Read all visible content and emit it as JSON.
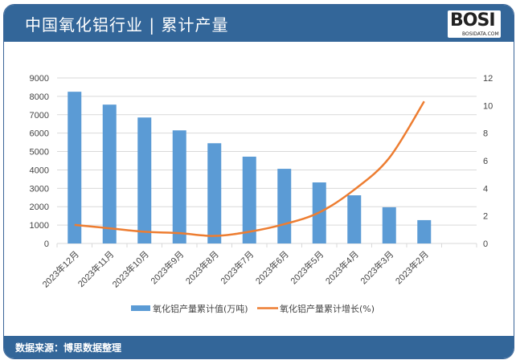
{
  "header": {
    "title": "中国氧化铝行业 | 累计产量",
    "logo_text": "BOSI",
    "logo_sub": "BOSIDATA.COM"
  },
  "footer": {
    "source": "数据来源：博思数据整理"
  },
  "colors": {
    "header": "#336699",
    "bar": "#5b9bd5",
    "line": "#ed7d31"
  },
  "chart_data": {
    "type": "bar+line",
    "categories": [
      "2023年12月",
      "2023年11月",
      "2023年10月",
      "2023年9月",
      "2023年8月",
      "2023年7月",
      "2023年6月",
      "2023年5月",
      "2023年4月",
      "2023年3月",
      "2023年2月",
      ""
    ],
    "series": [
      {
        "name": "氧化铝产量累计值(万吨)",
        "type": "bar",
        "axis": "left",
        "values": [
          8250,
          7550,
          6850,
          6150,
          5450,
          4720,
          4060,
          3320,
          2620,
          1970,
          1270,
          null
        ]
      },
      {
        "name": "氧化铝产量累计增长(%)",
        "type": "line",
        "axis": "right",
        "values": [
          1.35,
          1.1,
          0.85,
          0.75,
          0.55,
          0.85,
          1.4,
          2.25,
          3.9,
          6.2,
          10.3,
          null
        ]
      }
    ],
    "ylim_left": [
      0,
      9000
    ],
    "yticks_left": [
      0,
      1000,
      2000,
      3000,
      4000,
      5000,
      6000,
      7000,
      8000,
      9000
    ],
    "ylim_right": [
      0,
      12
    ],
    "yticks_right": [
      0,
      2,
      4,
      6,
      8,
      10,
      12
    ],
    "grid": true,
    "legend": "bottom"
  }
}
